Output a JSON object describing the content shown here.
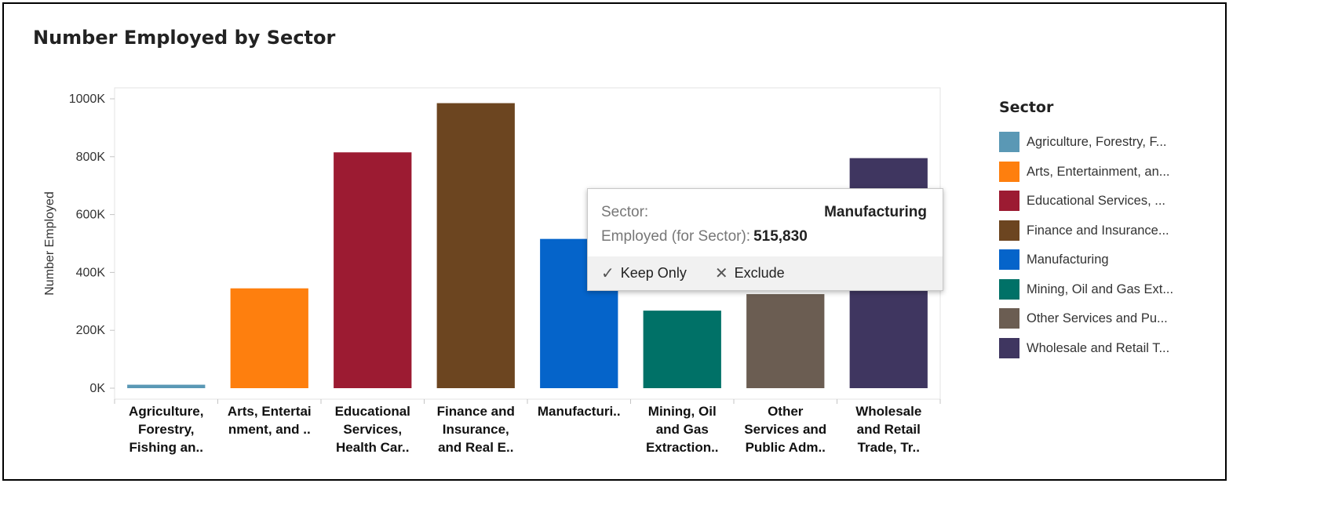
{
  "chart_data": {
    "type": "bar",
    "title": "Number Employed by Sector",
    "ylabel": "Number Employed",
    "xlabel": "",
    "ylim": [
      0,
      1000000
    ],
    "yticks": [
      0,
      200000,
      400000,
      600000,
      800000,
      1000000
    ],
    "ytick_labels": [
      "0K",
      "200K",
      "400K",
      "600K",
      "800K",
      "1000K"
    ],
    "categories": [
      [
        "Agriculture,",
        "Forestry,",
        "Fishing an.."
      ],
      [
        "Arts, Entertai",
        "nment, and .."
      ],
      [
        "Educational",
        "Services,",
        "Health Car.."
      ],
      [
        "Finance and",
        "Insurance,",
        "and Real E.."
      ],
      [
        "Manufacturi.."
      ],
      [
        "Mining, Oil",
        "and Gas",
        "Extraction.."
      ],
      [
        "Other",
        "Services and",
        "Public Adm.."
      ],
      [
        "Wholesale",
        "and Retail",
        "Trade, Tr.."
      ]
    ],
    "values": [
      12000,
      345000,
      815000,
      985000,
      515830,
      268000,
      325000,
      795000
    ],
    "colors": [
      "#5a98b5",
      "#fe7f0e",
      "#9c1b32",
      "#6c4520",
      "#0564ca",
      "#007167",
      "#6b5d52",
      "#3f3660"
    ],
    "grid": false
  },
  "legend": {
    "title": "Sector",
    "items": [
      {
        "label": "Agriculture, Forestry, F...",
        "color": "#5a98b5"
      },
      {
        "label": "Arts, Entertainment, an...",
        "color": "#fe7f0e"
      },
      {
        "label": "Educational Services, ...",
        "color": "#9c1b32"
      },
      {
        "label": "Finance and Insurance...",
        "color": "#6c4520"
      },
      {
        "label": "Manufacturing",
        "color": "#0564ca"
      },
      {
        "label": "Mining, Oil and Gas Ext...",
        "color": "#007167"
      },
      {
        "label": "Other Services and Pu...",
        "color": "#6b5d52"
      },
      {
        "label": "Wholesale and Retail T...",
        "color": "#3f3660"
      }
    ]
  },
  "tooltip": {
    "sector_label": "Sector:",
    "sector_value": "Manufacturing",
    "employed_label": "Employed (for Sector):",
    "employed_value": "515,830",
    "keep_only": "Keep Only",
    "exclude": "Exclude",
    "keep_icon": "checkmark-icon",
    "exclude_icon": "x-icon"
  }
}
